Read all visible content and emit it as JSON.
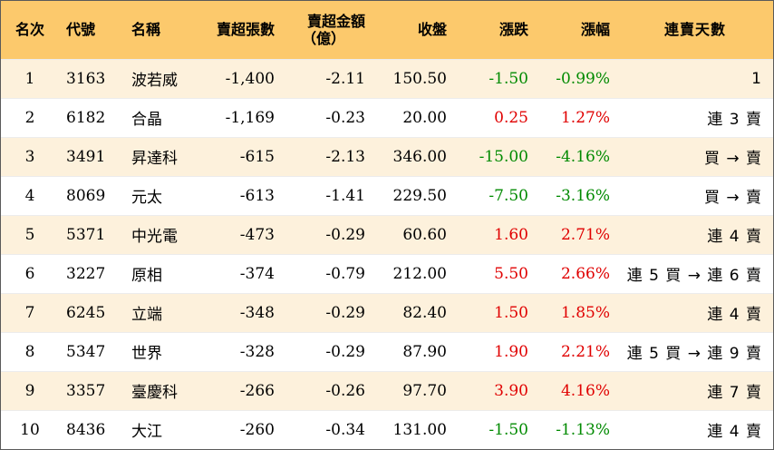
{
  "header": {
    "rank": "名次",
    "code": "代號",
    "name": "名稱",
    "sell_shares": "賣超張數",
    "sell_amount_line1": "賣超金額",
    "sell_amount_line2": "（億）",
    "close": "收盤",
    "change": "漲跌",
    "change_pct": "漲幅",
    "streak": "連賣天數"
  },
  "colors": {
    "header_bg": "#fcc96c",
    "stripe_bg": "#fdf1dc",
    "up": "#e00000",
    "down": "#008a00"
  },
  "rows": [
    {
      "rank": "1",
      "code": "3163",
      "name": "波若威",
      "sell_shares": "-1,400",
      "sell_amount": "-2.11",
      "close": "150.50",
      "change": "-1.50",
      "change_pct": "-0.99%",
      "direction": "down",
      "streak": "1"
    },
    {
      "rank": "2",
      "code": "6182",
      "name": "合晶",
      "sell_shares": "-1,169",
      "sell_amount": "-0.23",
      "close": "20.00",
      "change": "0.25",
      "change_pct": "1.27%",
      "direction": "up",
      "streak": "連 3 賣"
    },
    {
      "rank": "3",
      "code": "3491",
      "name": "昇達科",
      "sell_shares": "-615",
      "sell_amount": "-2.13",
      "close": "346.00",
      "change": "-15.00",
      "change_pct": "-4.16%",
      "direction": "down",
      "streak": "買 → 賣"
    },
    {
      "rank": "4",
      "code": "8069",
      "name": "元太",
      "sell_shares": "-613",
      "sell_amount": "-1.41",
      "close": "229.50",
      "change": "-7.50",
      "change_pct": "-3.16%",
      "direction": "down",
      "streak": "買 → 賣"
    },
    {
      "rank": "5",
      "code": "5371",
      "name": "中光電",
      "sell_shares": "-473",
      "sell_amount": "-0.29",
      "close": "60.60",
      "change": "1.60",
      "change_pct": "2.71%",
      "direction": "up",
      "streak": "連 4 賣"
    },
    {
      "rank": "6",
      "code": "3227",
      "name": "原相",
      "sell_shares": "-374",
      "sell_amount": "-0.79",
      "close": "212.00",
      "change": "5.50",
      "change_pct": "2.66%",
      "direction": "up",
      "streak": "連 5 買 → 連 6 賣"
    },
    {
      "rank": "7",
      "code": "6245",
      "name": "立端",
      "sell_shares": "-348",
      "sell_amount": "-0.29",
      "close": "82.40",
      "change": "1.50",
      "change_pct": "1.85%",
      "direction": "up",
      "streak": "連 4 賣"
    },
    {
      "rank": "8",
      "code": "5347",
      "name": "世界",
      "sell_shares": "-328",
      "sell_amount": "-0.29",
      "close": "87.90",
      "change": "1.90",
      "change_pct": "2.21%",
      "direction": "up",
      "streak": "連 5 買 → 連 9 賣"
    },
    {
      "rank": "9",
      "code": "3357",
      "name": "臺慶科",
      "sell_shares": "-266",
      "sell_amount": "-0.26",
      "close": "97.70",
      "change": "3.90",
      "change_pct": "4.16%",
      "direction": "up",
      "streak": "連 7 賣"
    },
    {
      "rank": "10",
      "code": "8436",
      "name": "大江",
      "sell_shares": "-260",
      "sell_amount": "-0.34",
      "close": "131.00",
      "change": "-1.50",
      "change_pct": "-1.13%",
      "direction": "down",
      "streak": "連 4 賣"
    }
  ]
}
